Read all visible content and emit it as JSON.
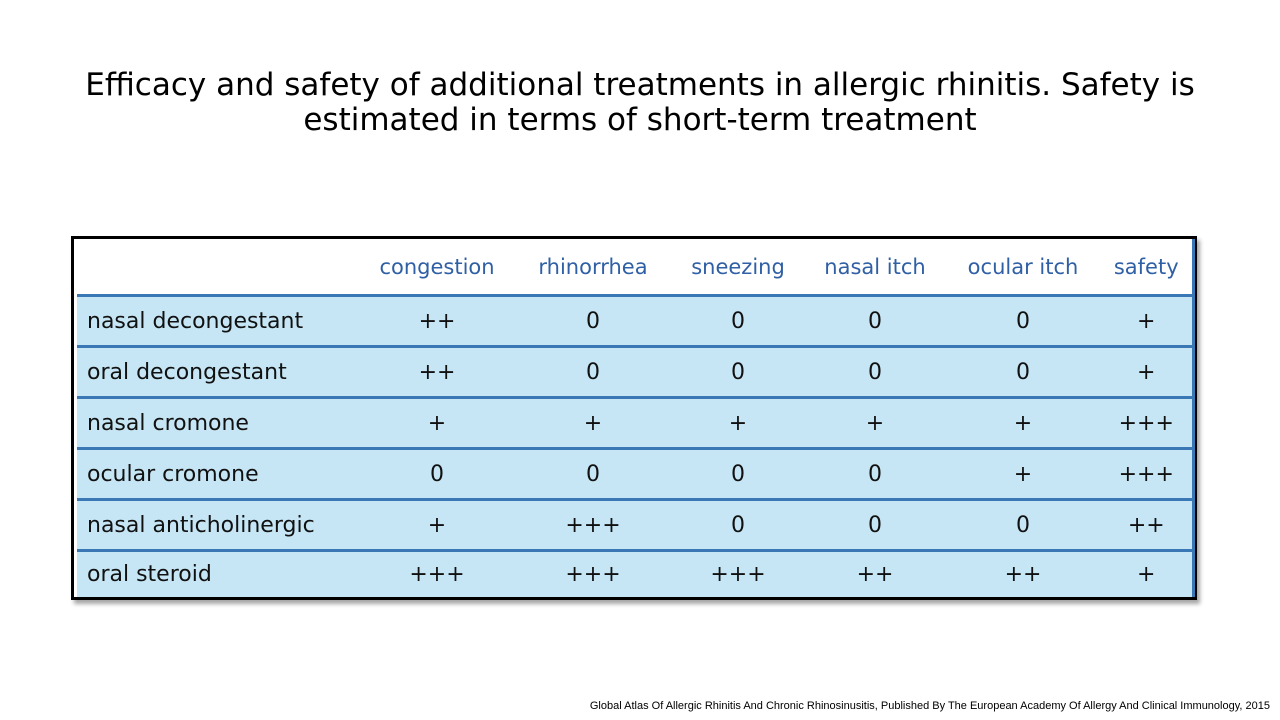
{
  "title": {
    "line1": "Efficacy and safety of additional treatments in allergic rhinitis. Safety is",
    "line2": "estimated in terms of short-term treatment"
  },
  "table": {
    "columns": [
      "",
      "congestion",
      "rhinorrhea",
      "sneezing",
      "nasal itch",
      "ocular itch",
      "safety"
    ],
    "rows": [
      {
        "label": "nasal decongestant",
        "values": [
          "++",
          "0",
          "0",
          "0",
          "0",
          "+"
        ]
      },
      {
        "label": "oral decongestant",
        "values": [
          "++",
          "0",
          "0",
          "0",
          "0",
          "+"
        ]
      },
      {
        "label": "nasal cromone",
        "values": [
          "+",
          "+",
          "+",
          "+",
          "+",
          "+++"
        ]
      },
      {
        "label": "ocular cromone",
        "values": [
          "0",
          "0",
          "0",
          "0",
          "+",
          "+++"
        ]
      },
      {
        "label": "nasal anticholinergic",
        "values": [
          "+",
          "+++",
          "0",
          "0",
          "0",
          "++"
        ]
      },
      {
        "label": "oral steroid",
        "values": [
          "+++",
          "+++",
          "+++",
          "++",
          "++",
          "+"
        ]
      }
    ]
  },
  "citation": "Global Atlas Of Allergic Rhinitis And Chronic Rhinosinusitis, Published By The European Academy Of Allergy And Clinical Immunology, 2015",
  "colors": {
    "header_text": "#2f5fa5",
    "row_fill": "#c6e6f5",
    "row_divider": "#3a78b5"
  }
}
